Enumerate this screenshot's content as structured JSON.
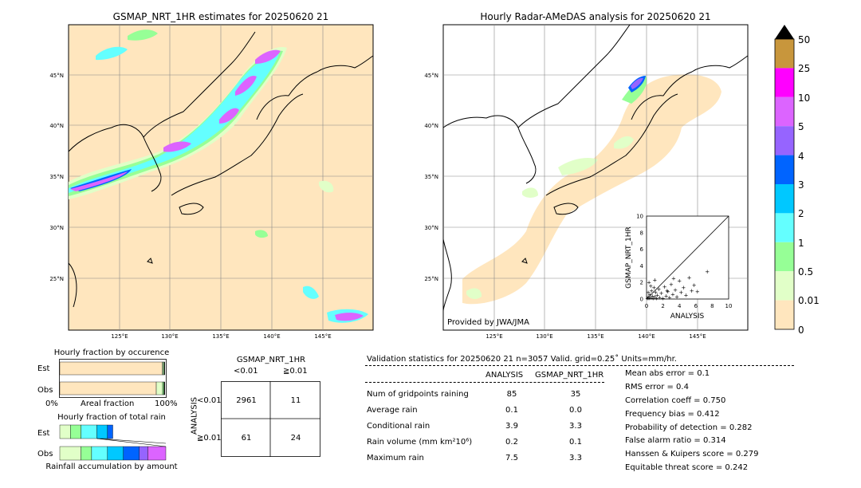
{
  "left_map": {
    "title": "GSMAP_NRT_1HR estimates for 20250620 21",
    "lat_ticks": [
      "45°N",
      "40°N",
      "35°N",
      "30°N",
      "25°N"
    ],
    "lon_ticks": [
      "125°E",
      "130°E",
      "135°E",
      "140°E",
      "145°E"
    ]
  },
  "right_map": {
    "title": "Hourly Radar-AMeDAS analysis for 20250620 21",
    "lat_ticks": [
      "45°N",
      "40°N",
      "35°N",
      "30°N",
      "25°N"
    ],
    "lon_ticks": [
      "125°E",
      "130°E",
      "135°E",
      "140°E",
      "145°E"
    ],
    "credit": "Provided by JWA/JMA"
  },
  "colorbar": {
    "labels": [
      "50",
      "25",
      "10",
      "5",
      "4",
      "3",
      "2",
      "1",
      "0.5",
      "0.01",
      "0"
    ],
    "colors": [
      "#c8963c",
      "#ff00ff",
      "#dc64ff",
      "#9664ff",
      "#0064ff",
      "#00c8ff",
      "#64ffff",
      "#96ff96",
      "#e1ffc8",
      "#ffe6be"
    ],
    "extend_color": "#000000"
  },
  "occurrence": {
    "title": "Hourly fraction by occurence",
    "rows": [
      "Est",
      "Obs"
    ],
    "axis_left": "0%",
    "axis_mid": "Areal fraction",
    "axis_right": "100%"
  },
  "total_rain": {
    "title": "Hourly fraction of total rain",
    "rows": [
      "Est",
      "Obs"
    ],
    "footer": "Rainfall accumulation by amount"
  },
  "contingency": {
    "col_header": "GSMAP_NRT_1HR",
    "col_labels": [
      "<0.01",
      "≧0.01"
    ],
    "row_header": "ANALYSIS",
    "row_labels": [
      "<0.01",
      "≧0.01"
    ],
    "cells": [
      [
        "2961",
        "11"
      ],
      [
        "61",
        "24"
      ]
    ]
  },
  "validation": {
    "header": "Validation statistics for 20250620 21  n=3057 Valid. grid=0.25˚ Units=mm/hr.",
    "col_analysis": "ANALYSIS",
    "col_gsmap": "GSMAP_NRT_1HR",
    "rows": [
      {
        "label": "Num of gridpoints raining",
        "analysis": "85",
        "gsmap": "35"
      },
      {
        "label": "Average rain",
        "analysis": "0.1",
        "gsmap": "0.0"
      },
      {
        "label": "Conditional rain",
        "analysis": "3.9",
        "gsmap": "3.3"
      },
      {
        "label": "Rain volume (mm km²10⁶)",
        "analysis": "0.2",
        "gsmap": "0.1"
      },
      {
        "label": "Maximum rain",
        "analysis": "7.5",
        "gsmap": "3.3"
      }
    ],
    "scores": [
      "Mean abs error =    0.1",
      "RMS error =    0.4",
      "Correlation coeff =  0.750",
      "Frequency bias =  0.412",
      "Probability of detection =  0.282",
      "False alarm ratio =  0.314",
      "Hanssen & Kuipers score =  0.279",
      "Equitable threat score =  0.242"
    ]
  },
  "chart_data": [
    {
      "type": "scatter",
      "title": "",
      "xlabel": "ANALYSIS",
      "ylabel": "GSMAP_NRT_1HR",
      "xlim": [
        0,
        10
      ],
      "ylim": [
        0,
        10
      ],
      "x_ticks": [
        "0",
        "2",
        "4",
        "6",
        "8",
        "10"
      ],
      "y_ticks": [
        "0",
        "2",
        "4",
        "6",
        "8",
        "10"
      ],
      "diagonal": true,
      "points": [
        [
          0.1,
          0.1
        ],
        [
          0.2,
          0.3
        ],
        [
          0.3,
          0.1
        ],
        [
          0.4,
          0.6
        ],
        [
          0.5,
          0.2
        ],
        [
          0.6,
          1.0
        ],
        [
          0.7,
          0.4
        ],
        [
          0.8,
          0.1
        ],
        [
          0.9,
          1.4
        ],
        [
          1.0,
          0.3
        ],
        [
          1.1,
          0.8
        ],
        [
          1.2,
          0.1
        ],
        [
          1.3,
          0.5
        ],
        [
          1.5,
          1.2
        ],
        [
          1.6,
          0.2
        ],
        [
          1.8,
          0.7
        ],
        [
          2.0,
          0.1
        ],
        [
          2.2,
          1.5
        ],
        [
          2.4,
          0.4
        ],
        [
          2.6,
          0.9
        ],
        [
          2.8,
          0.2
        ],
        [
          3.0,
          1.8
        ],
        [
          3.2,
          0.6
        ],
        [
          3.5,
          1.1
        ],
        [
          3.7,
          0.3
        ],
        [
          4.0,
          2.2
        ],
        [
          4.2,
          0.8
        ],
        [
          4.5,
          1.4
        ],
        [
          4.8,
          0.5
        ],
        [
          5.2,
          2.6
        ],
        [
          5.5,
          1.0
        ],
        [
          5.8,
          1.7
        ],
        [
          6.2,
          0.9
        ],
        [
          7.4,
          3.3
        ],
        [
          0.3,
          2.0
        ],
        [
          0.5,
          1.6
        ],
        [
          1.0,
          2.3
        ],
        [
          0.2,
          0.8
        ],
        [
          2.5,
          1.0
        ],
        [
          3.3,
          2.5
        ]
      ]
    },
    {
      "type": "bar",
      "title": "Hourly fraction by occurence",
      "categories": [
        "Est",
        "Obs"
      ],
      "series": [
        {
          "name": "",
          "color": "#ffe6be",
          "values": [
            0.965,
            0.91
          ]
        },
        {
          "name": "",
          "color": "#e1ffc8",
          "values": [
            0.012,
            0.06
          ]
        },
        {
          "name": "",
          "color": "#96ff96",
          "values": [
            0.008,
            0.012
          ]
        },
        {
          "name": "",
          "color": "#000000",
          "values": [
            0.005,
            0.008
          ]
        }
      ]
    },
    {
      "type": "bar",
      "title": "Hourly fraction of total rain",
      "categories": [
        "Est",
        "Obs"
      ],
      "series": [
        {
          "name": "",
          "color": "#e1ffc8",
          "values": [
            0.1,
            0.2
          ]
        },
        {
          "name": "",
          "color": "#96ff96",
          "values": [
            0.1,
            0.1
          ]
        },
        {
          "name": "",
          "color": "#64ffff",
          "values": [
            0.15,
            0.15
          ]
        },
        {
          "name": "",
          "color": "#00c8ff",
          "values": [
            0.1,
            0.15
          ]
        },
        {
          "name": "",
          "color": "#0064ff",
          "values": [
            0.05,
            0.15
          ]
        },
        {
          "name": "",
          "color": "#9664ff",
          "values": [
            0,
            0.08
          ]
        },
        {
          "name": "",
          "color": "#dc64ff",
          "values": [
            0,
            0.17
          ]
        }
      ]
    }
  ]
}
